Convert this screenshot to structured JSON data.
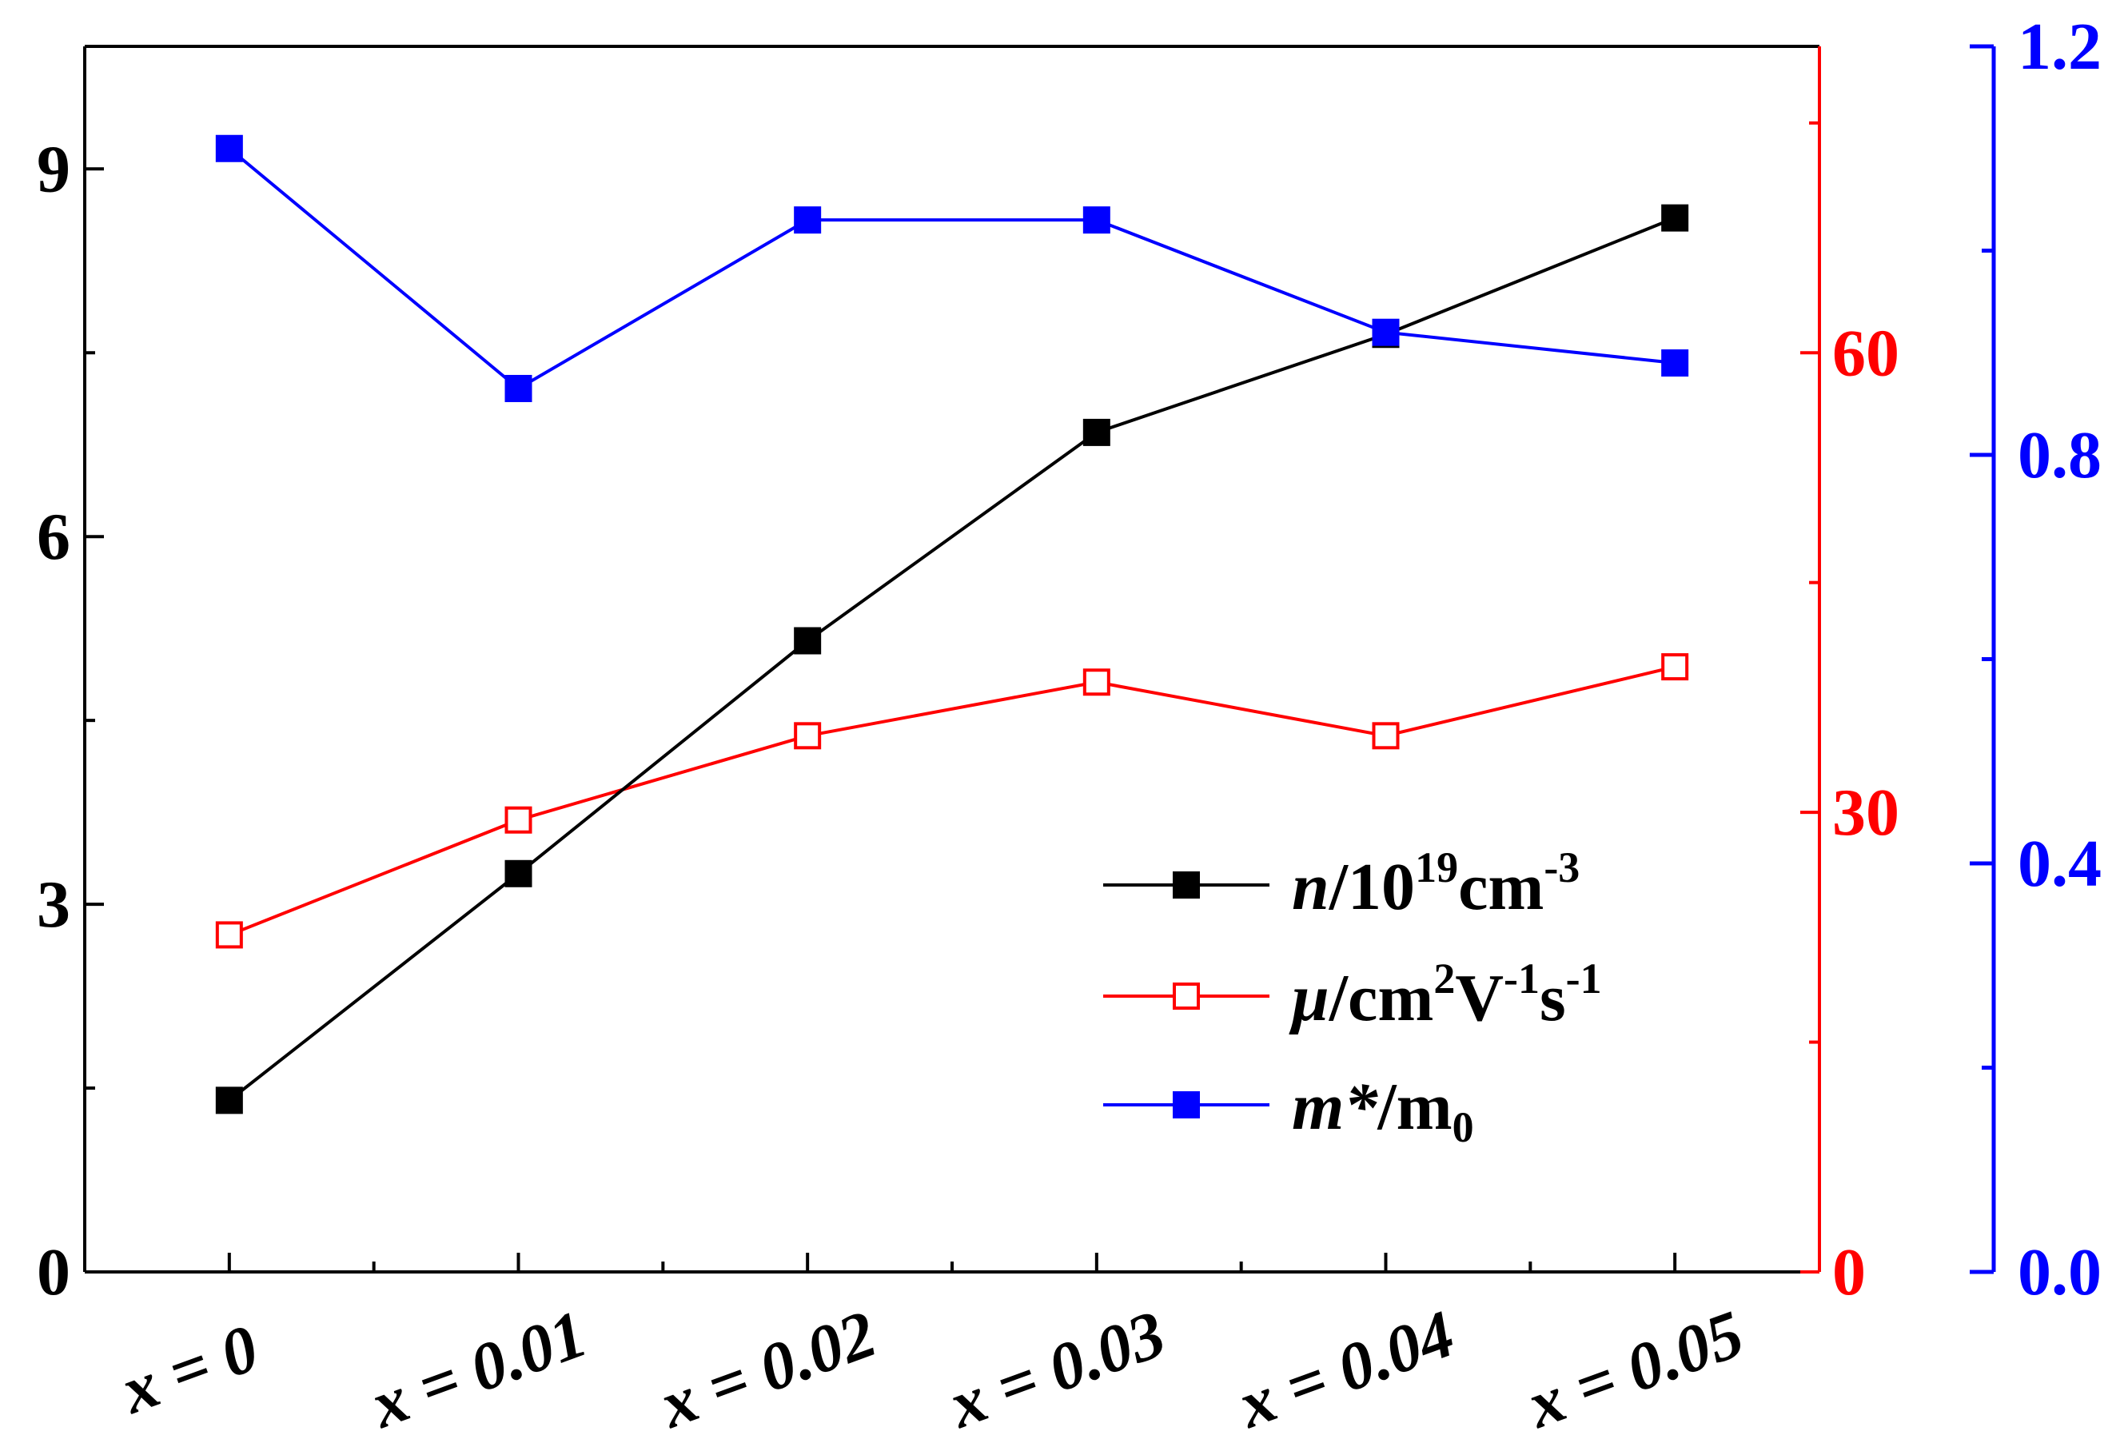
{
  "chart_data": {
    "type": "line",
    "categories": [
      "x = 0",
      "x = 0.01",
      "x = 0.02",
      "x = 0.03",
      "x = 0.04",
      "x = 0.05"
    ],
    "axes": {
      "left": {
        "range": [
          0,
          10
        ],
        "ticks": [
          0,
          3,
          6,
          9
        ],
        "tick_labels": [
          "0",
          "3",
          "6",
          "9"
        ],
        "minor": [
          1.5,
          4.5,
          7.5
        ],
        "color": "#000000"
      },
      "right": {
        "range": [
          0,
          80
        ],
        "ticks": [
          0,
          30,
          60
        ],
        "tick_labels": [
          "0",
          "30",
          "60"
        ],
        "minor": [
          15,
          45,
          75
        ],
        "color": "#ff0000"
      },
      "far_right": {
        "range": [
          0,
          1.2
        ],
        "ticks": [
          0.0,
          0.4,
          0.8,
          1.2
        ],
        "tick_labels": [
          "0.0",
          "0.4",
          "0.8",
          "1.2"
        ],
        "minor": [
          0.2,
          0.6,
          1.0
        ],
        "color": "#0000ff"
      }
    },
    "series": [
      {
        "name": "n/10^19 cm^-3",
        "axis": "left",
        "color": "#000000",
        "marker": "filled-square",
        "values": [
          1.4,
          3.25,
          5.15,
          6.85,
          7.65,
          8.6
        ]
      },
      {
        "name": "μ/cm^2 V^-1 s^-1",
        "axis": "right",
        "color": "#ff0000",
        "marker": "open-square",
        "values": [
          22,
          29.5,
          35,
          38.5,
          35,
          39.5
        ]
      },
      {
        "name": "m*/m0",
        "axis": "far_right",
        "color": "#0000ff",
        "marker": "filled-square",
        "values": [
          1.1,
          0.865,
          1.03,
          1.03,
          0.92,
          0.89
        ]
      }
    ],
    "legend": {
      "position": "center-right",
      "entries": [
        {
          "italic": "n",
          "parts": [
            [
              "/10",
              ""
            ],
            [
              "19",
              "sup"
            ],
            [
              "cm",
              ""
            ],
            [
              "-3",
              "sup"
            ]
          ]
        },
        {
          "italic": "μ",
          "parts": [
            [
              "/cm",
              ""
            ],
            [
              "2",
              "sup"
            ],
            [
              "V",
              ""
            ],
            [
              "-1",
              "sup"
            ],
            [
              "s",
              ""
            ],
            [
              "-1",
              "sup"
            ]
          ]
        },
        {
          "italic": "m*",
          "parts": [
            [
              "/m",
              ""
            ],
            [
              "0",
              "sub"
            ]
          ]
        }
      ]
    }
  }
}
